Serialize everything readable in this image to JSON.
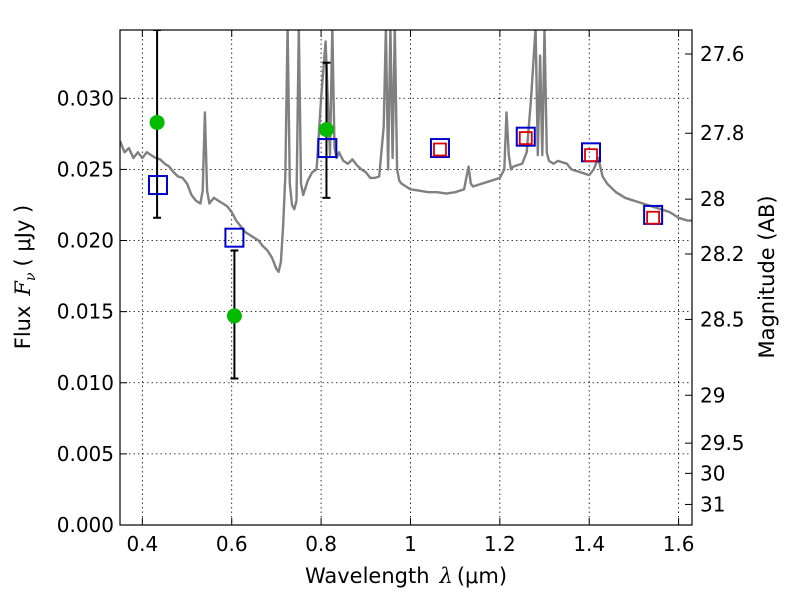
{
  "chart_data": {
    "type": "scatter",
    "title": "",
    "xlabel_text": "Wavelength",
    "xlabel_symbol": "λ",
    "xlabel_unit": "(μm)",
    "ylabel_text": "Flux",
    "ylabel_symbol": "F",
    "ylabel_sub": "ν",
    "ylabel_unit": "( μJy )",
    "y2label": "Magnitude (AB)",
    "xlim": [
      0.35,
      1.63
    ],
    "ylim": [
      0.0,
      0.0348
    ],
    "grid": true,
    "x_ticks": [
      0.4,
      0.6,
      0.8,
      1.0,
      1.2,
      1.4,
      1.6
    ],
    "x_tick_labels": [
      "0.4",
      "0.6",
      "0.8",
      "1",
      "1.2",
      "1.4",
      "1.6"
    ],
    "y_ticks": [
      0.0,
      0.005,
      0.01,
      0.015,
      0.02,
      0.025,
      0.03
    ],
    "y_tick_labels": [
      "0.000",
      "0.005",
      "0.010",
      "0.015",
      "0.020",
      "0.025",
      "0.030"
    ],
    "y2_ticks": [
      {
        "mag": 27.6,
        "label": "27.6"
      },
      {
        "mag": 27.8,
        "label": "27.8"
      },
      {
        "mag": 28.0,
        "label": "28"
      },
      {
        "mag": 28.2,
        "label": "28.2"
      },
      {
        "mag": 28.5,
        "label": "28.5"
      },
      {
        "mag": 29.0,
        "label": "29"
      },
      {
        "mag": 29.5,
        "label": "29.5"
      },
      {
        "mag": 30.0,
        "label": "30"
      },
      {
        "mag": 31.0,
        "label": "31"
      }
    ],
    "series": [
      {
        "kind": "line",
        "color": "#808080",
        "x": [
          0.35,
          0.36,
          0.37,
          0.38,
          0.39,
          0.4,
          0.41,
          0.42,
          0.43,
          0.44,
          0.45,
          0.46,
          0.47,
          0.48,
          0.49,
          0.5,
          0.51,
          0.52,
          0.53,
          0.535,
          0.54,
          0.545,
          0.55,
          0.56,
          0.57,
          0.58,
          0.59,
          0.6,
          0.61,
          0.62,
          0.63,
          0.64,
          0.65,
          0.66,
          0.67,
          0.68,
          0.69,
          0.7,
          0.705,
          0.71,
          0.715,
          0.72,
          0.725,
          0.73,
          0.735,
          0.74,
          0.745,
          0.75,
          0.755,
          0.76,
          0.77,
          0.78,
          0.79,
          0.8,
          0.81,
          0.82,
          0.825,
          0.83,
          0.835,
          0.84,
          0.85,
          0.86,
          0.87,
          0.88,
          0.89,
          0.9,
          0.91,
          0.92,
          0.93,
          0.94,
          0.945,
          0.95,
          0.955,
          0.96,
          0.965,
          0.97,
          0.975,
          0.98,
          0.99,
          1.0,
          1.02,
          1.04,
          1.06,
          1.08,
          1.1,
          1.12,
          1.125,
          1.13,
          1.135,
          1.14,
          1.16,
          1.18,
          1.2,
          1.21,
          1.215,
          1.22,
          1.225,
          1.23,
          1.24,
          1.25,
          1.26,
          1.27,
          1.28,
          1.285,
          1.29,
          1.295,
          1.3,
          1.305,
          1.31,
          1.32,
          1.33,
          1.34,
          1.35,
          1.36,
          1.38,
          1.4,
          1.41,
          1.42,
          1.43,
          1.44,
          1.46,
          1.48,
          1.5,
          1.52,
          1.54,
          1.56,
          1.58,
          1.6,
          1.62,
          1.63
        ],
        "y": [
          0.027,
          0.0262,
          0.0265,
          0.0258,
          0.0262,
          0.0258,
          0.0262,
          0.026,
          0.0258,
          0.0257,
          0.0254,
          0.0252,
          0.0248,
          0.0245,
          0.0244,
          0.024,
          0.0232,
          0.0228,
          0.0226,
          0.0235,
          0.029,
          0.0235,
          0.0226,
          0.023,
          0.0228,
          0.0226,
          0.0224,
          0.022,
          0.0214,
          0.021,
          0.0206,
          0.0204,
          0.0202,
          0.02,
          0.0196,
          0.0193,
          0.0188,
          0.018,
          0.0178,
          0.0185,
          0.021,
          0.0245,
          0.035,
          0.024,
          0.0225,
          0.0222,
          0.0228,
          0.035,
          0.024,
          0.0232,
          0.0242,
          0.0248,
          0.025,
          0.03,
          0.034,
          0.026,
          0.035,
          0.0265,
          0.0258,
          0.0262,
          0.0256,
          0.0254,
          0.0257,
          0.0253,
          0.025,
          0.0248,
          0.0244,
          0.0244,
          0.0245,
          0.028,
          0.035,
          0.025,
          0.035,
          0.0258,
          0.035,
          0.025,
          0.0242,
          0.024,
          0.0238,
          0.0236,
          0.0235,
          0.0234,
          0.0234,
          0.0233,
          0.0234,
          0.0236,
          0.0244,
          0.0252,
          0.024,
          0.0238,
          0.024,
          0.0242,
          0.0244,
          0.025,
          0.029,
          0.026,
          0.025,
          0.0252,
          0.0253,
          0.0254,
          0.0262,
          0.03,
          0.035,
          0.026,
          0.033,
          0.026,
          0.0348,
          0.0262,
          0.0256,
          0.0254,
          0.0256,
          0.0255,
          0.0254,
          0.025,
          0.0248,
          0.0246,
          0.025,
          0.0258,
          0.0245,
          0.024,
          0.0234,
          0.023,
          0.0228,
          0.0226,
          0.0224,
          0.0222,
          0.022,
          0.0216,
          0.0214,
          0.0214
        ]
      },
      {
        "kind": "points",
        "marker": "circle",
        "color": "#00bb00",
        "x": [
          0.433,
          0.606,
          0.812
        ],
        "y": [
          0.0283,
          0.0147,
          0.0278
        ],
        "yerr_low": [
          0.0216,
          0.0103,
          0.023
        ],
        "yerr_high": [
          0.0348,
          0.0193,
          0.0325
        ]
      },
      {
        "kind": "points",
        "marker": "square",
        "color": "#0000cc",
        "x": [
          0.435,
          0.606,
          0.814,
          1.066,
          1.258,
          1.404,
          1.543
        ],
        "y": [
          0.0239,
          0.0202,
          0.0265,
          0.0265,
          0.0273,
          0.0262,
          0.0218
        ]
      },
      {
        "kind": "points",
        "marker": "square-small",
        "color": "#dd0000",
        "x": [
          1.066,
          1.258,
          1.404,
          1.543
        ],
        "y": [
          0.0264,
          0.0272,
          0.026,
          0.0216
        ]
      }
    ]
  }
}
